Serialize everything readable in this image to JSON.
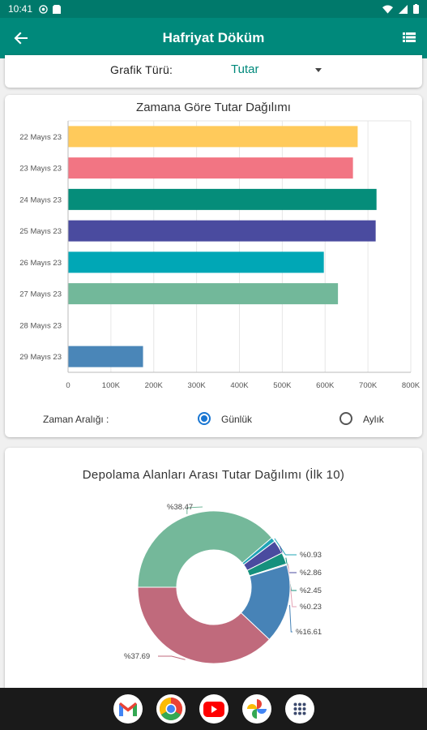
{
  "status_bar": {
    "time": "10:41"
  },
  "app_bar": {
    "title": "Hafriyat Döküm",
    "back_icon": "arrow-back-icon",
    "menu_icon": "list-menu-icon"
  },
  "filter": {
    "label": "Grafik Türü:",
    "selected": "Tutar"
  },
  "bar_card": {
    "title": "Zamana Göre Tutar Dağılımı",
    "range_label": "Zaman Aralığı :",
    "options": [
      "Günlük",
      "Aylık"
    ],
    "selected_option": "Günlük"
  },
  "pie_card": {
    "title": "Depolama Alanları Arası Tutar Dağılımı (İlk 10)"
  },
  "chart_data": [
    {
      "type": "bar",
      "orientation": "horizontal",
      "title": "Zamana Göre Tutar Dağılımı",
      "categories": [
        "22 Mayıs 23",
        "23 Mayıs 23",
        "24 Mayıs 23",
        "25 Mayıs 23",
        "26 Mayıs 23",
        "27 Mayıs 23",
        "28 Mayıs 23",
        "29 Mayıs 23"
      ],
      "values": [
        676000,
        665000,
        720000,
        718000,
        597000,
        630000,
        0,
        175000
      ],
      "colors": [
        "#ffca5b",
        "#f27583",
        "#058d7a",
        "#4a4b9f",
        "#00a7b6",
        "#72b89a",
        "#cccccc",
        "#4a86b8"
      ],
      "xlim": [
        0,
        800000
      ],
      "xticks": [
        "0",
        "100K",
        "200K",
        "300K",
        "400K",
        "500K",
        "600K",
        "700K",
        "800K"
      ],
      "grid": true
    },
    {
      "type": "pie",
      "style": "donut",
      "title": "Depolama Alanları Arası Tutar Dağılımı (İlk 10)",
      "labels": [
        "%38.47",
        "%0.93",
        "%2.86",
        "%2.45",
        "%0.23",
        "%16.61",
        "%37.69"
      ],
      "values": [
        38.47,
        0.93,
        2.86,
        2.45,
        0.23,
        16.61,
        37.69
      ],
      "colors": [
        "#74b89a",
        "#1fa4b6",
        "#4a4b9f",
        "#15907d",
        "#e3a2b4",
        "#4783b7",
        "#c06a7c"
      ]
    }
  ],
  "dock_apps": [
    "Gmail",
    "Chrome",
    "YouTube",
    "Photos",
    "Apps"
  ]
}
